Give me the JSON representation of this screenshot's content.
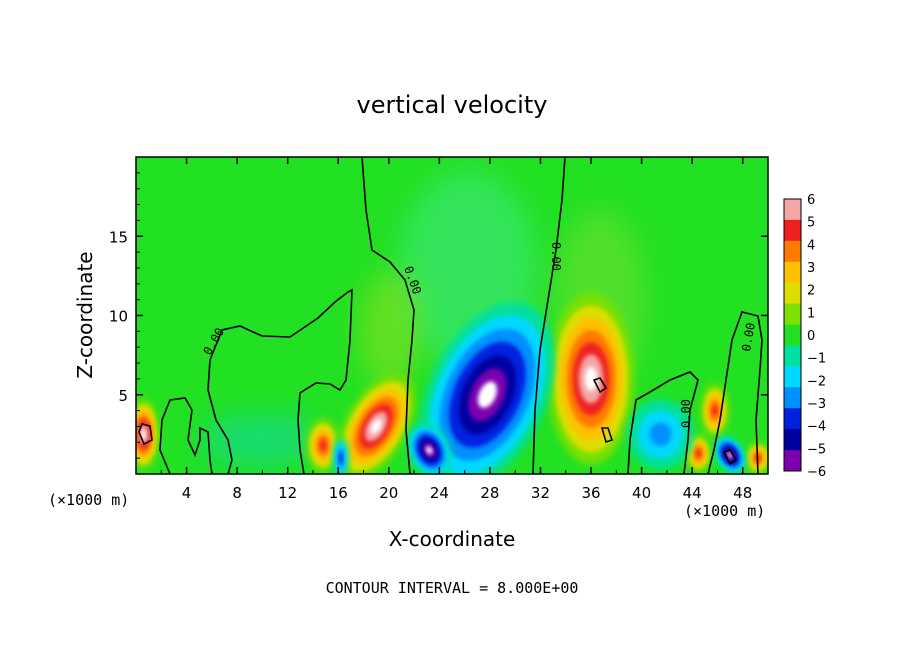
{
  "chart_data": {
    "type": "heatmap",
    "title": "vertical velocity",
    "xlabel": "X-coordinate",
    "ylabel": "Z-coordinate",
    "x_unit": "(×1000 m)",
    "x_unit_right": "(×1000 m)",
    "xlim": [
      0,
      50
    ],
    "ylim": [
      0,
      20
    ],
    "x_ticks": [
      "4",
      "8",
      "12",
      "16",
      "20",
      "24",
      "28",
      "32",
      "36",
      "40",
      "44",
      "48"
    ],
    "y_ticks": [
      "5",
      "10",
      "15"
    ],
    "footer": "CONTOUR INTERVAL = 8.000E+00",
    "contour_label": "0.00",
    "colorbar": {
      "levels": [
        "6",
        "5",
        "4",
        "3",
        "2",
        "1",
        "0",
        "−1",
        "−2",
        "−3",
        "−4",
        "−5",
        "−6"
      ],
      "range": [
        -6,
        6
      ],
      "colors": [
        "#f4a6a6",
        "#f02020",
        "#ff7a00",
        "#ffc000",
        "#dddd00",
        "#7ee000",
        "#22e022",
        "#00e0a0",
        "#00d8ff",
        "#0090ff",
        "#0020e0",
        "#0000a0",
        "#7a00b0"
      ]
    },
    "features": [
      {
        "kind": "updraft",
        "x": 0.6,
        "z": 2.5,
        "peak": 6.2
      },
      {
        "kind": "updraft",
        "x": 14.8,
        "z": 1.8,
        "peak": 4.8
      },
      {
        "kind": "updraft",
        "x": 19.0,
        "z": 3.0,
        "peak": 7.0
      },
      {
        "kind": "updraft",
        "x": 36.0,
        "z": 6.0,
        "peak": 7.5
      },
      {
        "kind": "updraft",
        "x": 45.8,
        "z": 4.0,
        "peak": 5.0
      },
      {
        "kind": "updraft",
        "x": 44.5,
        "z": 1.3,
        "peak": 4.5
      },
      {
        "kind": "updraft",
        "x": 49.2,
        "z": 1.0,
        "peak": 4.5
      },
      {
        "kind": "downdraft",
        "x": 27.8,
        "z": 5.0,
        "peak": -8.5
      },
      {
        "kind": "downdraft",
        "x": 23.2,
        "z": 1.5,
        "peak": -7.0
      },
      {
        "kind": "downdraft",
        "x": 47.0,
        "z": 1.2,
        "peak": -6.5
      },
      {
        "kind": "downdraft",
        "x": 41.5,
        "z": 2.5,
        "peak": -2.8
      },
      {
        "kind": "downdraft",
        "x": 16.2,
        "z": 1.0,
        "peak": -4.0
      }
    ]
  }
}
